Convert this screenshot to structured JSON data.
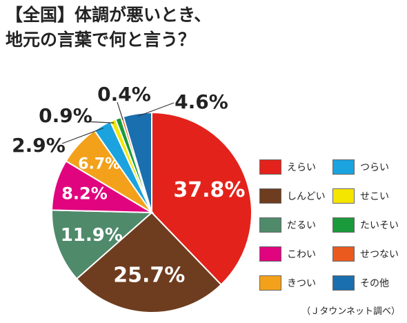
{
  "title_lines": [
    "【全国】体調が悪いとき、",
    "地元の言葉で何と言う？"
  ],
  "source": "（Ｊタウンネット調べ）",
  "chart_data": {
    "type": "pie",
    "title": "【全国】体調が悪いとき、地元の言葉で何と言う？",
    "slices": [
      {
        "name": "えらい",
        "value": 37.8,
        "label": "37.8%",
        "color": "#e3231b"
      },
      {
        "name": "しんどい",
        "value": 25.7,
        "label": "25.7%",
        "color": "#6e3d1f"
      },
      {
        "name": "だるい",
        "value": 11.9,
        "label": "11.9%",
        "color": "#4f8a6b"
      },
      {
        "name": "こわい",
        "value": 8.2,
        "label": "8.2%",
        "color": "#e0057e"
      },
      {
        "name": "きつい",
        "value": 6.7,
        "label": "6.7%",
        "color": "#f3a11b"
      },
      {
        "name": "つらい",
        "value": 2.9,
        "label": "2.9%",
        "color": "#1ba3e0"
      },
      {
        "name": "せこい",
        "value": 0.9,
        "label": "0.9%",
        "color": "#f5e600"
      },
      {
        "name": "たいそい",
        "value": 0.9,
        "label": "",
        "color": "#1a9a3b"
      },
      {
        "name": "せつない",
        "value": 0.4,
        "label": "0.4%",
        "color": "#ea5a1f"
      },
      {
        "name": "その他",
        "value": 4.6,
        "label": "4.6%",
        "color": "#1a6fae"
      }
    ],
    "legend_order": [
      "えらい",
      "つらい",
      "しんどい",
      "せこい",
      "だるい",
      "たいそい",
      "こわい",
      "せつない",
      "きつい",
      "その他"
    ],
    "legend_placement": "bottom-right"
  }
}
